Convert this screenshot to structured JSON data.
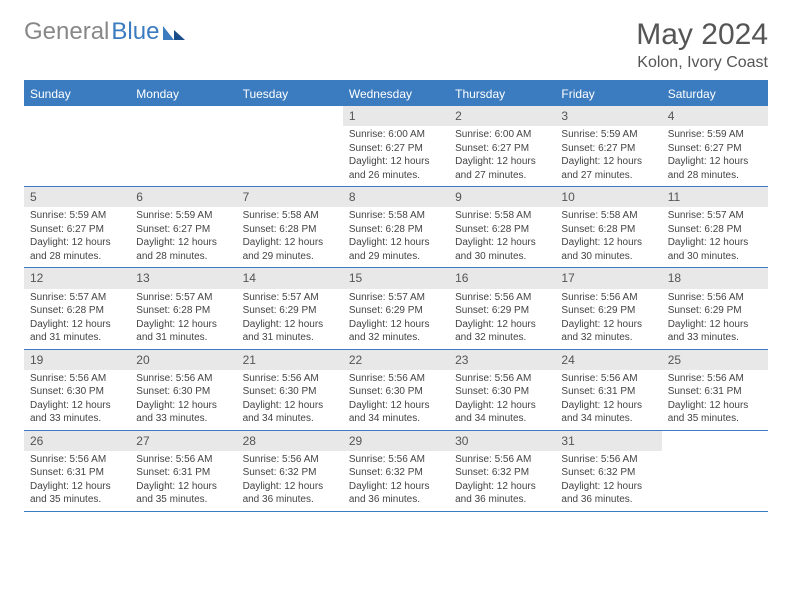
{
  "brand": {
    "part1": "General",
    "part2": "Blue"
  },
  "title": {
    "month_year": "May 2024",
    "location": "Kolon, Ivory Coast"
  },
  "colors": {
    "accent": "#3b7bbf",
    "accent_dark": "#1a4e8a",
    "daynum_bg": "#e8e8e8",
    "text_muted": "#555",
    "text_body": "#444",
    "logo_gray": "#888",
    "background": "#ffffff"
  },
  "typography": {
    "title_fontsize": 30,
    "location_fontsize": 16,
    "dow_fontsize": 12,
    "daynum_fontsize": 12,
    "body_fontsize": 10
  },
  "days_of_week": [
    "Sunday",
    "Monday",
    "Tuesday",
    "Wednesday",
    "Thursday",
    "Friday",
    "Saturday"
  ],
  "weeks": [
    [
      {
        "n": "",
        "sr": "",
        "ss": "",
        "dl": ""
      },
      {
        "n": "",
        "sr": "",
        "ss": "",
        "dl": ""
      },
      {
        "n": "",
        "sr": "",
        "ss": "",
        "dl": ""
      },
      {
        "n": "1",
        "sr": "Sunrise: 6:00 AM",
        "ss": "Sunset: 6:27 PM",
        "dl": "Daylight: 12 hours and 26 minutes."
      },
      {
        "n": "2",
        "sr": "Sunrise: 6:00 AM",
        "ss": "Sunset: 6:27 PM",
        "dl": "Daylight: 12 hours and 27 minutes."
      },
      {
        "n": "3",
        "sr": "Sunrise: 5:59 AM",
        "ss": "Sunset: 6:27 PM",
        "dl": "Daylight: 12 hours and 27 minutes."
      },
      {
        "n": "4",
        "sr": "Sunrise: 5:59 AM",
        "ss": "Sunset: 6:27 PM",
        "dl": "Daylight: 12 hours and 28 minutes."
      }
    ],
    [
      {
        "n": "5",
        "sr": "Sunrise: 5:59 AM",
        "ss": "Sunset: 6:27 PM",
        "dl": "Daylight: 12 hours and 28 minutes."
      },
      {
        "n": "6",
        "sr": "Sunrise: 5:59 AM",
        "ss": "Sunset: 6:27 PM",
        "dl": "Daylight: 12 hours and 28 minutes."
      },
      {
        "n": "7",
        "sr": "Sunrise: 5:58 AM",
        "ss": "Sunset: 6:28 PM",
        "dl": "Daylight: 12 hours and 29 minutes."
      },
      {
        "n": "8",
        "sr": "Sunrise: 5:58 AM",
        "ss": "Sunset: 6:28 PM",
        "dl": "Daylight: 12 hours and 29 minutes."
      },
      {
        "n": "9",
        "sr": "Sunrise: 5:58 AM",
        "ss": "Sunset: 6:28 PM",
        "dl": "Daylight: 12 hours and 30 minutes."
      },
      {
        "n": "10",
        "sr": "Sunrise: 5:58 AM",
        "ss": "Sunset: 6:28 PM",
        "dl": "Daylight: 12 hours and 30 minutes."
      },
      {
        "n": "11",
        "sr": "Sunrise: 5:57 AM",
        "ss": "Sunset: 6:28 PM",
        "dl": "Daylight: 12 hours and 30 minutes."
      }
    ],
    [
      {
        "n": "12",
        "sr": "Sunrise: 5:57 AM",
        "ss": "Sunset: 6:28 PM",
        "dl": "Daylight: 12 hours and 31 minutes."
      },
      {
        "n": "13",
        "sr": "Sunrise: 5:57 AM",
        "ss": "Sunset: 6:28 PM",
        "dl": "Daylight: 12 hours and 31 minutes."
      },
      {
        "n": "14",
        "sr": "Sunrise: 5:57 AM",
        "ss": "Sunset: 6:29 PM",
        "dl": "Daylight: 12 hours and 31 minutes."
      },
      {
        "n": "15",
        "sr": "Sunrise: 5:57 AM",
        "ss": "Sunset: 6:29 PM",
        "dl": "Daylight: 12 hours and 32 minutes."
      },
      {
        "n": "16",
        "sr": "Sunrise: 5:56 AM",
        "ss": "Sunset: 6:29 PM",
        "dl": "Daylight: 12 hours and 32 minutes."
      },
      {
        "n": "17",
        "sr": "Sunrise: 5:56 AM",
        "ss": "Sunset: 6:29 PM",
        "dl": "Daylight: 12 hours and 32 minutes."
      },
      {
        "n": "18",
        "sr": "Sunrise: 5:56 AM",
        "ss": "Sunset: 6:29 PM",
        "dl": "Daylight: 12 hours and 33 minutes."
      }
    ],
    [
      {
        "n": "19",
        "sr": "Sunrise: 5:56 AM",
        "ss": "Sunset: 6:30 PM",
        "dl": "Daylight: 12 hours and 33 minutes."
      },
      {
        "n": "20",
        "sr": "Sunrise: 5:56 AM",
        "ss": "Sunset: 6:30 PM",
        "dl": "Daylight: 12 hours and 33 minutes."
      },
      {
        "n": "21",
        "sr": "Sunrise: 5:56 AM",
        "ss": "Sunset: 6:30 PM",
        "dl": "Daylight: 12 hours and 34 minutes."
      },
      {
        "n": "22",
        "sr": "Sunrise: 5:56 AM",
        "ss": "Sunset: 6:30 PM",
        "dl": "Daylight: 12 hours and 34 minutes."
      },
      {
        "n": "23",
        "sr": "Sunrise: 5:56 AM",
        "ss": "Sunset: 6:30 PM",
        "dl": "Daylight: 12 hours and 34 minutes."
      },
      {
        "n": "24",
        "sr": "Sunrise: 5:56 AM",
        "ss": "Sunset: 6:31 PM",
        "dl": "Daylight: 12 hours and 34 minutes."
      },
      {
        "n": "25",
        "sr": "Sunrise: 5:56 AM",
        "ss": "Sunset: 6:31 PM",
        "dl": "Daylight: 12 hours and 35 minutes."
      }
    ],
    [
      {
        "n": "26",
        "sr": "Sunrise: 5:56 AM",
        "ss": "Sunset: 6:31 PM",
        "dl": "Daylight: 12 hours and 35 minutes."
      },
      {
        "n": "27",
        "sr": "Sunrise: 5:56 AM",
        "ss": "Sunset: 6:31 PM",
        "dl": "Daylight: 12 hours and 35 minutes."
      },
      {
        "n": "28",
        "sr": "Sunrise: 5:56 AM",
        "ss": "Sunset: 6:32 PM",
        "dl": "Daylight: 12 hours and 36 minutes."
      },
      {
        "n": "29",
        "sr": "Sunrise: 5:56 AM",
        "ss": "Sunset: 6:32 PM",
        "dl": "Daylight: 12 hours and 36 minutes."
      },
      {
        "n": "30",
        "sr": "Sunrise: 5:56 AM",
        "ss": "Sunset: 6:32 PM",
        "dl": "Daylight: 12 hours and 36 minutes."
      },
      {
        "n": "31",
        "sr": "Sunrise: 5:56 AM",
        "ss": "Sunset: 6:32 PM",
        "dl": "Daylight: 12 hours and 36 minutes."
      },
      {
        "n": "",
        "sr": "",
        "ss": "",
        "dl": ""
      }
    ]
  ]
}
